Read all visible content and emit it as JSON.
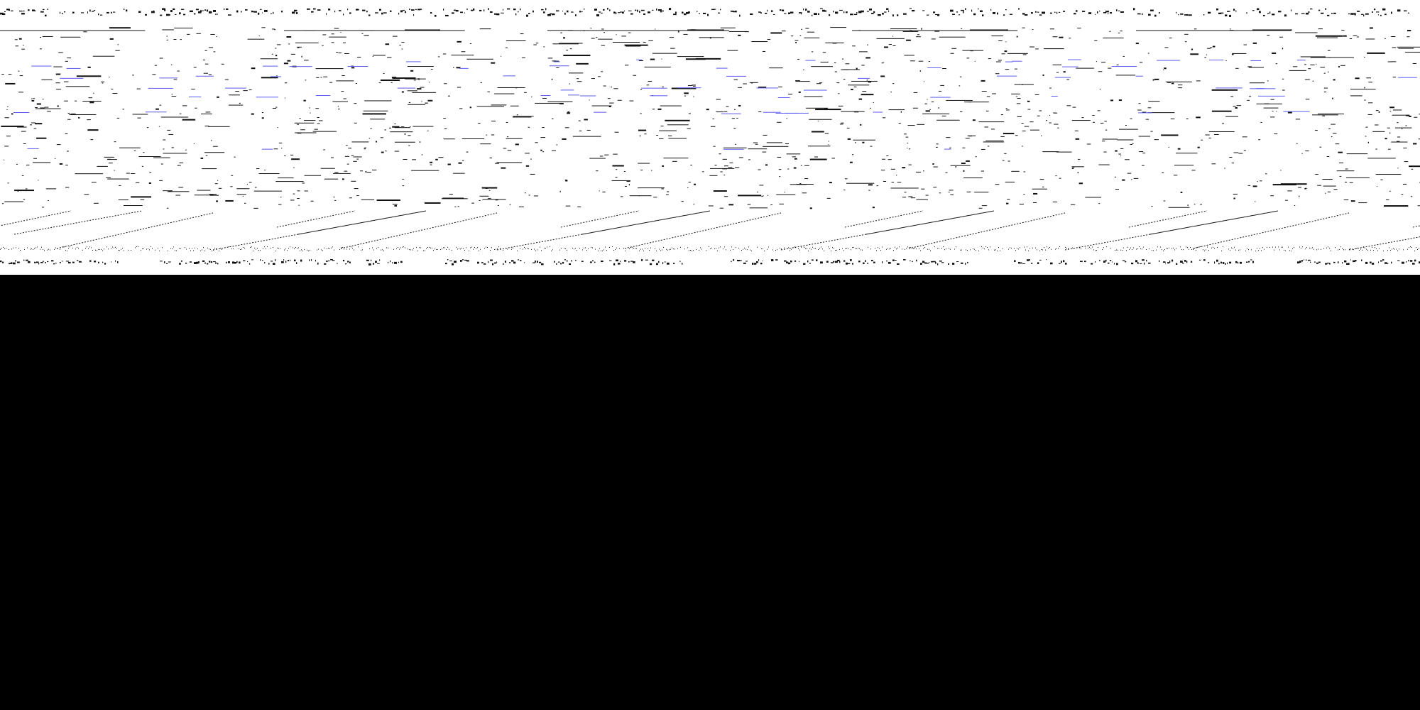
{
  "screen": {
    "state": "garbled render",
    "legible_text": []
  },
  "colors": {
    "strip_background": "#ffffff",
    "ink": "#111111",
    "link_ink": "#5a5af0",
    "blank_area": "#000000"
  }
}
